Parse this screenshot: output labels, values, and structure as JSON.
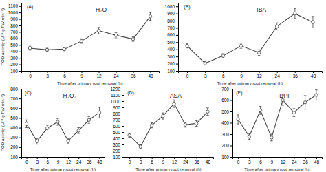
{
  "chart_data": [
    {
      "type": "line",
      "title": "H₂O",
      "annotation": "(A)",
      "xlabel": "Time after primary root removal (h)",
      "ylabel": "POD activity (U⁻¹ g FW min⁻¹)",
      "categories": [
        "0",
        "3",
        "6",
        "9",
        "12",
        "24",
        "36",
        "48"
      ],
      "series": [
        {
          "color": "#444444",
          "marker": "circle",
          "values": [
            450,
            425,
            435,
            560,
            720,
            650,
            590,
            940
          ],
          "yerr": [
            30,
            25,
            25,
            35,
            50,
            40,
            35,
            60
          ]
        }
      ],
      "ylim": [
        100,
        1150
      ],
      "yticks": [
        100,
        200,
        300,
        400,
        500,
        600,
        700,
        800,
        900,
        1000,
        1100
      ]
    },
    {
      "type": "line",
      "title": "IBA",
      "annotation": "(B)",
      "xlabel": "Time after primary root removal (h)",
      "categories": [
        "0",
        "3",
        "6",
        "9",
        "12",
        "24",
        "36",
        "48"
      ],
      "series": [
        {
          "color": "#444444",
          "marker": "circle",
          "values": [
            450,
            205,
            310,
            450,
            355,
            720,
            900,
            780
          ],
          "yerr": [
            30,
            25,
            30,
            35,
            40,
            50,
            70,
            80
          ]
        }
      ],
      "ylim": [
        100,
        1050
      ],
      "yticks": [
        100,
        200,
        300,
        400,
        500,
        600,
        700,
        800,
        900,
        1000
      ]
    },
    {
      "type": "line",
      "title": "H₂O₂",
      "annotation": "(C)",
      "xlabel": "Time after primary root removal (h)",
      "ylabel": "POD activity (U⁻¹ g FW min⁻¹)",
      "categories": [
        "0",
        "3",
        "6",
        "9",
        "12",
        "24",
        "36",
        "48"
      ],
      "series": [
        {
          "color": "#444444",
          "marker": "circle",
          "values": [
            440,
            260,
            395,
            460,
            265,
            370,
            480,
            555
          ],
          "yerr": [
            40,
            30,
            30,
            35,
            25,
            30,
            35,
            55
          ]
        }
      ],
      "ylim": [
        100,
        800
      ],
      "yticks": [
        100,
        200,
        300,
        400,
        500,
        600,
        700,
        800
      ]
    },
    {
      "type": "line",
      "title": "ASA",
      "annotation": "(D)",
      "xlabel": "Time after primary root removal (h)",
      "categories": [
        "0",
        "3",
        "6",
        "9",
        "12",
        "24",
        "36",
        "48"
      ],
      "series": [
        {
          "color": "#444444",
          "marker": "circle",
          "values": [
            450,
            265,
            610,
            760,
            960,
            620,
            640,
            830
          ],
          "yerr": [
            35,
            30,
            40,
            50,
            60,
            40,
            45,
            60
          ]
        }
      ],
      "ylim": [
        100,
        1200
      ],
      "yticks": [
        100,
        200,
        300,
        400,
        500,
        600,
        700,
        800,
        900,
        1000,
        1100,
        1200
      ]
    },
    {
      "type": "line",
      "title": "DPI",
      "annotation": "(E)",
      "xlabel": "Time after primary root removal (h)",
      "categories": [
        "0",
        "3",
        "6",
        "9",
        "12",
        "24",
        "36",
        "48"
      ],
      "series": [
        {
          "color": "#444444",
          "marker": "circle",
          "values": [
            430,
            280,
            510,
            270,
            600,
            490,
            580,
            645
          ],
          "yerr": [
            40,
            25,
            35,
            30,
            45,
            35,
            60,
            45
          ]
        }
      ],
      "ylim": [
        100,
        700
      ],
      "yticks": [
        100,
        200,
        300,
        400,
        500,
        600,
        700
      ]
    }
  ]
}
